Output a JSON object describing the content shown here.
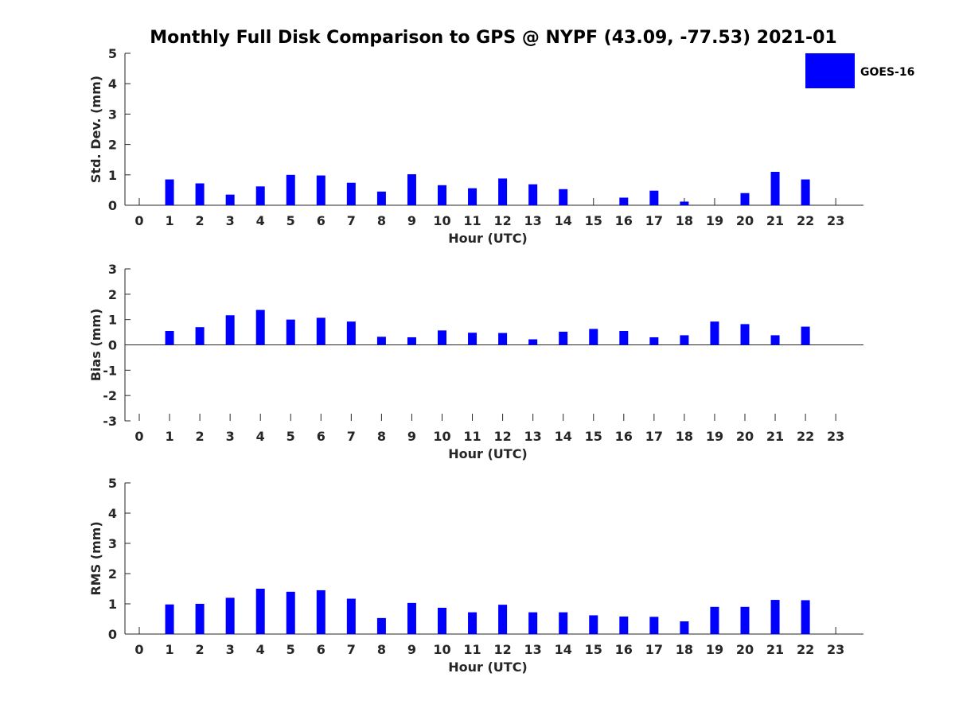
{
  "title": "Monthly Full Disk Comparison to GPS @ NYPF (43.09, -77.53) 2021-01",
  "colors": {
    "bar": "#0000ff",
    "axis": "#262626",
    "background": "#ffffff"
  },
  "legend": {
    "label": "GOES-16",
    "placement": "top-right"
  },
  "chart_data": [
    {
      "type": "bar",
      "ylabel": "Std. Dev. (mm)",
      "xlabel": "Hour (UTC)",
      "ylim": [
        0,
        5
      ],
      "yticks": [
        0,
        1,
        2,
        3,
        4,
        5
      ],
      "categories": [
        0,
        1,
        2,
        3,
        4,
        5,
        6,
        7,
        8,
        9,
        10,
        11,
        12,
        13,
        14,
        15,
        16,
        17,
        18,
        19,
        20,
        21,
        22,
        23
      ],
      "series": [
        {
          "name": "GOES-16",
          "values": [
            null,
            0.85,
            0.72,
            0.35,
            0.62,
            1.0,
            0.98,
            0.74,
            0.45,
            1.02,
            0.66,
            0.56,
            0.88,
            0.69,
            0.53,
            null,
            0.25,
            0.48,
            0.12,
            null,
            0.4,
            1.1,
            0.85,
            null
          ]
        }
      ]
    },
    {
      "type": "bar",
      "ylabel": "Bias (mm)",
      "xlabel": "Hour (UTC)",
      "ylim": [
        -3,
        3
      ],
      "yticks": [
        -3,
        -2,
        -1,
        0,
        1,
        2,
        3
      ],
      "categories": [
        0,
        1,
        2,
        3,
        4,
        5,
        6,
        7,
        8,
        9,
        10,
        11,
        12,
        13,
        14,
        15,
        16,
        17,
        18,
        19,
        20,
        21,
        22,
        23
      ],
      "series": [
        {
          "name": "GOES-16",
          "values": [
            null,
            0.55,
            0.7,
            1.17,
            1.38,
            1.0,
            1.07,
            0.92,
            0.32,
            0.3,
            0.57,
            0.48,
            0.47,
            0.22,
            0.52,
            0.63,
            0.55,
            0.3,
            0.38,
            0.92,
            0.82,
            0.38,
            0.72,
            null
          ]
        }
      ]
    },
    {
      "type": "bar",
      "ylabel": "RMS (mm)",
      "xlabel": "Hour (UTC)",
      "ylim": [
        0,
        5
      ],
      "yticks": [
        0,
        1,
        2,
        3,
        4,
        5
      ],
      "categories": [
        0,
        1,
        2,
        3,
        4,
        5,
        6,
        7,
        8,
        9,
        10,
        11,
        12,
        13,
        14,
        15,
        16,
        17,
        18,
        19,
        20,
        21,
        22,
        23
      ],
      "series": [
        {
          "name": "GOES-16",
          "values": [
            null,
            0.98,
            1.0,
            1.2,
            1.5,
            1.4,
            1.45,
            1.17,
            0.53,
            1.03,
            0.87,
            0.72,
            0.97,
            0.72,
            0.72,
            0.62,
            0.58,
            0.57,
            0.42,
            0.9,
            0.9,
            1.13,
            1.12,
            null
          ]
        }
      ]
    }
  ]
}
